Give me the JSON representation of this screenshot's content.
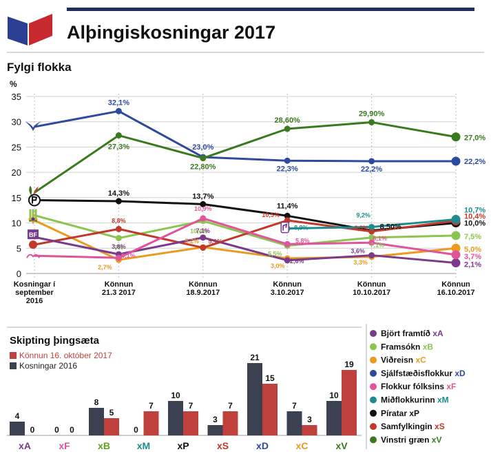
{
  "header": {
    "title": "Alþingiskosningar 2017",
    "accent_color": "#1f2d5e",
    "logo_colors": [
      "#2a3f91",
      "#c62a2f"
    ]
  },
  "chart_data": [
    {
      "type": "line",
      "title": "Fylgi flokka",
      "ylabel": "%",
      "ylim": [
        0,
        35
      ],
      "yticks": [
        0,
        5,
        10,
        15,
        20,
        25,
        30,
        35
      ],
      "grid": true,
      "categories": [
        "Kosningar í september 2016",
        "Könnun 21.3 2017",
        "Könnun 18.9.2017",
        "Könnun 3.10.2017",
        "Könnun 10.10.2017",
        "Könnun 16.10.2017"
      ],
      "category_lines": [
        [
          "Kosningar í",
          "september",
          "2016"
        ],
        [
          "Könnun",
          "21.3 2017"
        ],
        [
          "Könnun",
          "18.9.2017"
        ],
        [
          "Könnun",
          "3.10.2017"
        ],
        [
          "Könnun",
          "10.10.2017"
        ],
        [
          "Könnun",
          "16.10.2017"
        ]
      ],
      "series": [
        {
          "key": "D",
          "color": "#2e4a9e",
          "values": [
            29.0,
            32.1,
            23.0,
            22.3,
            22.2,
            22.2
          ],
          "labels": [
            null,
            "32,1%",
            "23,0%",
            "22,3%",
            "22,2%",
            "22,2%"
          ],
          "icon": "bird-icon"
        },
        {
          "key": "V",
          "color": "#3a7a1e",
          "values": [
            16.0,
            27.3,
            22.8,
            28.6,
            29.9,
            27.0
          ],
          "labels": [
            null,
            "27,3%",
            "22,80%",
            "28,60%",
            "29,90%",
            "27,0%"
          ],
          "icon": "leaf-icon"
        },
        {
          "key": "P",
          "color": "#111111",
          "values": [
            14.5,
            14.3,
            13.7,
            11.4,
            8.5,
            10.0
          ],
          "labels": [
            null,
            "14,3%",
            "13,7%",
            "11,4%",
            "8,50%",
            "10,0%"
          ],
          "icon": "pirate-flag-icon"
        },
        {
          "key": "B",
          "color": "#8dc44f",
          "values": [
            11.5,
            7.0,
            10.4,
            5.5,
            7.1,
            7.5
          ],
          "labels": [
            null,
            "7%",
            "10,4%",
            "5,5%",
            "7,1%",
            "7,5%"
          ],
          "icon": "wheat-icon"
        },
        {
          "key": "C",
          "color": "#eb9a1e",
          "values": [
            10.5,
            2.7,
            5.2,
            3.0,
            3.3,
            5.0
          ],
          "labels": [
            null,
            "2,7%",
            "5,2%",
            "3,0%",
            "3,3%",
            "5,0%"
          ],
          "icon": "star-icon"
        },
        {
          "key": "S",
          "color": "#c0392b",
          "values": [
            5.7,
            8.8,
            5.1,
            10.5,
            8.3,
            10.4
          ],
          "labels": [
            null,
            "8,8%",
            "5,1%",
            "10,5%",
            "8,3%",
            "10,4%"
          ],
          "icon": "rose-icon"
        },
        {
          "key": "A",
          "color": "#7b3a8c",
          "values": [
            7.2,
            3.8,
            7.1,
            2.6,
            3.6,
            2.1
          ],
          "labels": [
            null,
            "3,8%",
            "7,1%",
            "2,6%",
            "3,6%",
            "2,1%"
          ],
          "icon": "bf-icon"
        },
        {
          "key": "F",
          "color": "#e0549b",
          "values": [
            3.5,
            3.1,
            10.9,
            5.8,
            6.1,
            3.7
          ],
          "labels": [
            null,
            "3,1%",
            "10,9%",
            "5,8%",
            "6,1%",
            "3,7%"
          ],
          "icon": "people-icon"
        },
        {
          "key": "M",
          "color": "#1e8c8c",
          "values": [
            null,
            null,
            null,
            8.9,
            9.2,
            10.7
          ],
          "labels": [
            null,
            null,
            null,
            "8,9%",
            "9,2%",
            "10,7%"
          ],
          "icon": "horse-icon"
        }
      ]
    },
    {
      "type": "bar",
      "title": "Skipting þingsæta",
      "categories": [
        "xA",
        "xF",
        "xB",
        "xM",
        "xP",
        "xS",
        "xD",
        "xC",
        "xV"
      ],
      "category_colors": [
        "#7b3a8c",
        "#e0549b",
        "#5fa023",
        "#1e8c8c",
        "#111111",
        "#c0392b",
        "#2e4a9e",
        "#eb9a1e",
        "#3a7a1e"
      ],
      "series": [
        {
          "name": "Kosningar 2016",
          "color": "#3b4150",
          "values": [
            4,
            0,
            8,
            0,
            10,
            3,
            21,
            7,
            10
          ]
        },
        {
          "name": "Könnun 16. október 2017",
          "color": "#c0403d",
          "values": [
            0,
            0,
            5,
            7,
            7,
            7,
            15,
            3,
            19
          ]
        }
      ],
      "legend_order": [
        "Könnun 16. október 2017",
        "Kosningar 2016"
      ]
    }
  ],
  "legend": {
    "items": [
      {
        "name": "Björt framtíð",
        "code": "xA",
        "color": "#7b3a8c"
      },
      {
        "name": "Framsókn",
        "code": "xB",
        "color": "#8dc44f"
      },
      {
        "name": "Viðreisn",
        "code": "xC",
        "color": "#eb9a1e"
      },
      {
        "name": "Sjálfstæðisflokkur",
        "code": "xD",
        "color": "#2e4a9e"
      },
      {
        "name": "Flokkur fólksins",
        "code": "xF",
        "color": "#e0549b"
      },
      {
        "name": "Miðflokkurinn",
        "code": "xM",
        "color": "#1e8c8c"
      },
      {
        "name": "Píratar",
        "code": "xP",
        "color": "#111111"
      },
      {
        "name": "Samfylkingin",
        "code": "xS",
        "color": "#c0392b"
      },
      {
        "name": "Vinstri græn",
        "code": "xV",
        "color": "#3a7a1e"
      }
    ]
  },
  "icons": {
    "bf_text": "BF"
  }
}
